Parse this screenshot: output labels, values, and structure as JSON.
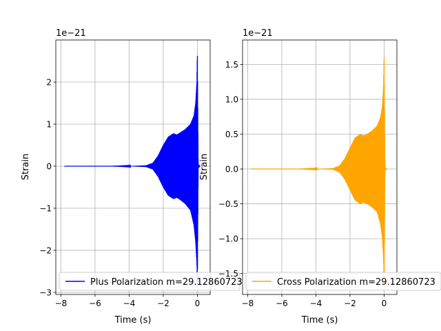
{
  "chart_data": [
    {
      "type": "line",
      "offset_label": "1e−21",
      "xlabel": "Time (s)",
      "ylabel": "Strain",
      "xlim": [
        -8.3,
        0.75
      ],
      "ylim": [
        -3.05,
        3.0
      ],
      "xticks": [
        -8,
        -6,
        -4,
        -2,
        0
      ],
      "xtick_labels": [
        "−8",
        "−6",
        "−4",
        "−2",
        "0"
      ],
      "yticks": [
        -3,
        -2,
        -1,
        0,
        1,
        2
      ],
      "ytick_labels": [
        "−3",
        "−2",
        "−1",
        "0",
        "1",
        "2"
      ],
      "grid": true,
      "legend": {
        "placement": "bottom-left",
        "label": "Plus Polarization m=29.12860723"
      },
      "series": [
        {
          "name": "Plus Polarization m=29.12860723",
          "color": "#0000ff",
          "t_start": -7.8,
          "t_merger": 0.0,
          "envelope_t": [
            -7.8,
            -5.0,
            -4.0,
            -3.0,
            -2.6,
            -2.3,
            -2.0,
            -1.7,
            -1.4,
            -1.2,
            -1.0,
            -0.7,
            -0.4,
            -0.2,
            -0.1,
            -0.03,
            0.0,
            0.05,
            0.15
          ],
          "envelope_upper": [
            0.0,
            0.0,
            0.003,
            0.02,
            0.08,
            0.25,
            0.5,
            0.7,
            0.78,
            0.75,
            0.8,
            0.88,
            1.0,
            1.2,
            1.5,
            2.0,
            2.75,
            0.05,
            0.0
          ],
          "envelope_lower": [
            0.0,
            0.0,
            -0.003,
            -0.02,
            -0.08,
            -0.25,
            -0.5,
            -0.7,
            -0.78,
            -0.75,
            -0.8,
            -0.9,
            -1.05,
            -1.4,
            -1.8,
            -2.3,
            -2.9,
            -0.05,
            0.0
          ]
        }
      ]
    },
    {
      "type": "line",
      "offset_label": "1e−21",
      "xlabel": "Time (s)",
      "ylabel": "Strain",
      "xlim": [
        -8.3,
        0.75
      ],
      "ylim": [
        -1.8,
        1.85
      ],
      "xticks": [
        -8,
        -6,
        -4,
        -2,
        0
      ],
      "xtick_labels": [
        "−8",
        "−6",
        "−4",
        "−2",
        "0"
      ],
      "yticks": [
        -1.5,
        -1.0,
        -0.5,
        0.0,
        0.5,
        1.0,
        1.5
      ],
      "ytick_labels": [
        "−1.5",
        "−1.0",
        "−0.5",
        "0.0",
        "0.5",
        "1.0",
        "1.5"
      ],
      "grid": true,
      "legend": {
        "placement": "bottom-left",
        "label": "Cross Polarization m=29.12860723"
      },
      "series": [
        {
          "name": "Cross Polarization m=29.12860723",
          "color": "#ffa500",
          "t_start": -7.8,
          "t_merger": 0.0,
          "envelope_t": [
            -7.8,
            -5.0,
            -4.0,
            -3.0,
            -2.6,
            -2.3,
            -2.0,
            -1.7,
            -1.4,
            -1.2,
            -1.0,
            -0.7,
            -0.4,
            -0.2,
            -0.1,
            -0.03,
            0.0,
            0.05,
            0.15
          ],
          "envelope_upper": [
            0.0,
            0.0,
            0.002,
            0.01,
            0.05,
            0.15,
            0.3,
            0.45,
            0.5,
            0.48,
            0.5,
            0.55,
            0.62,
            0.75,
            0.9,
            1.2,
            1.68,
            0.03,
            0.0
          ],
          "envelope_lower": [
            0.0,
            0.0,
            -0.002,
            -0.01,
            -0.05,
            -0.15,
            -0.3,
            -0.45,
            -0.5,
            -0.48,
            -0.5,
            -0.55,
            -0.62,
            -0.8,
            -1.0,
            -1.3,
            -1.75,
            -0.03,
            0.0
          ]
        }
      ]
    }
  ]
}
